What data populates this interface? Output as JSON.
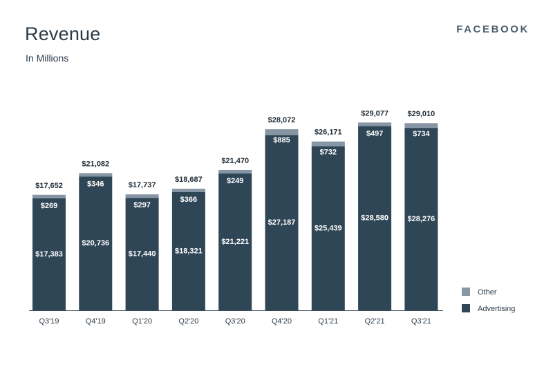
{
  "header": {
    "title": "Revenue",
    "subtitle": "In Millions",
    "brand": "FACEBOOK"
  },
  "colors": {
    "advertising": "#2f4656",
    "other": "#8796a4",
    "axis": "#3a4a57",
    "text": "#2b3a48"
  },
  "chart_data": {
    "type": "bar",
    "stacked": true,
    "title": "Revenue",
    "subtitle": "In Millions",
    "categories": [
      "Q3'19",
      "Q4'19",
      "Q1'20",
      "Q2'20",
      "Q3'20",
      "Q4'20",
      "Q1'21",
      "Q2'21",
      "Q3'21"
    ],
    "series": [
      {
        "name": "Advertising",
        "values": [
          17383,
          20736,
          17440,
          18321,
          21221,
          27187,
          25439,
          28580,
          28276
        ],
        "labels": [
          "$17,383",
          "$20,736",
          "$17,440",
          "$18,321",
          "$21,221",
          "$27,187",
          "$25,439",
          "$28,580",
          "$28,276"
        ]
      },
      {
        "name": "Other",
        "values": [
          269,
          346,
          297,
          366,
          249,
          885,
          732,
          497,
          734
        ],
        "labels": [
          "$269",
          "$346",
          "$297",
          "$366",
          "$249",
          "$885",
          "$732",
          "$497",
          "$734"
        ]
      }
    ],
    "totals": [
      17652,
      21082,
      17737,
      18687,
      21470,
      28072,
      26171,
      29077,
      29010
    ],
    "total_labels": [
      "$17,652",
      "$21,082",
      "$17,737",
      "$18,687",
      "$21,470",
      "$28,072",
      "$26,171",
      "$29,077",
      "$29,010"
    ],
    "ylim": [
      0,
      30000
    ],
    "legend": {
      "position": "bottom-right",
      "items": [
        "Other",
        "Advertising"
      ]
    },
    "grid": false
  }
}
